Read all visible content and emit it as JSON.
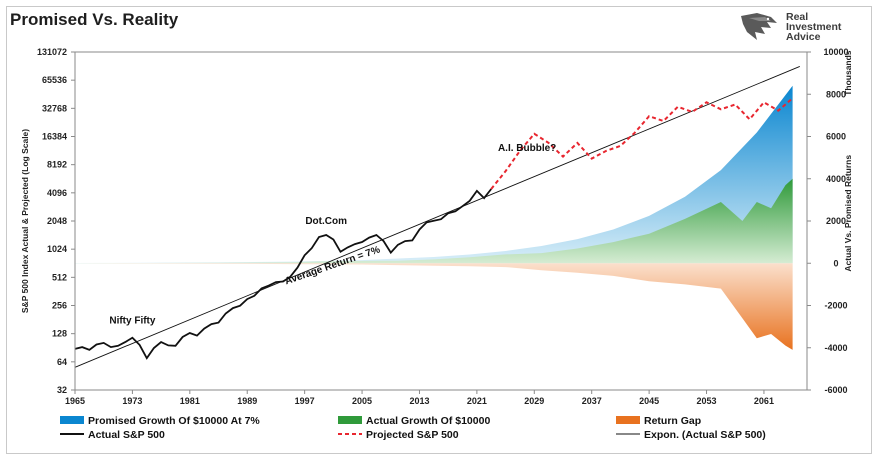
{
  "title": "Promised Vs. Reality",
  "brand": {
    "line1": "Real",
    "line2": "Investment",
    "line3": "Advice"
  },
  "colors": {
    "promised_top": "#0a86d0",
    "promised_bottom": "#d9eef8",
    "actual_top": "#2f9a3a",
    "actual_bottom": "#d5ecd3",
    "gap_top": "#fbe0cd",
    "gap_bottom": "#e8721f",
    "actual_line": "#111111",
    "projected_line": "#e8262f",
    "trend_line": "#111111"
  },
  "chart_data": {
    "type": "line",
    "xlabel": "",
    "ylabel_left": "S&P 500 Index Actual & Projected (Log Scale)",
    "ylabel_right": "Actual Vs. Promised Returns",
    "ylabel_right_unit": "Thousands",
    "left_scale": "log2",
    "ylim_left": [
      32,
      131072
    ],
    "ylim_right": [
      -6000,
      10000
    ],
    "xlim": [
      1965,
      2067
    ],
    "x_ticks": [
      "1965",
      "1973",
      "1981",
      "1989",
      "1997",
      "2005",
      "2013",
      "2021",
      "2029",
      "2037",
      "2045",
      "2053",
      "2061"
    ],
    "y_ticks_left": [
      "32",
      "64",
      "128",
      "256",
      "512",
      "1024",
      "2048",
      "4096",
      "8192",
      "16384",
      "32768",
      "65536",
      "131072"
    ],
    "y_ticks_right": [
      "-6000",
      "-4000",
      "-2000",
      "0",
      "2000",
      "4000",
      "6000",
      "8000",
      "10000"
    ],
    "annotations": [
      {
        "text": "Nifty Fifty",
        "x": 1973,
        "y": 165
      },
      {
        "text": "Dot.Com",
        "x": 2000,
        "y": 1900
      },
      {
        "text": "A.I. Bubble?",
        "x": 2028,
        "y": 11500
      },
      {
        "text": "Average Return = 7%",
        "x": 2001,
        "y": 640
      }
    ],
    "series": [
      {
        "name": "Actual S&P 500",
        "axis": "left",
        "x": [
          1965,
          1966,
          1967,
          1968,
          1969,
          1970,
          1971,
          1972,
          1973,
          1974,
          1975,
          1976,
          1977,
          1978,
          1979,
          1980,
          1981,
          1982,
          1983,
          1984,
          1985,
          1986,
          1987,
          1988,
          1989,
          1990,
          1991,
          1992,
          1993,
          1994,
          1995,
          1996,
          1997,
          1998,
          1999,
          2000,
          2001,
          2002,
          2003,
          2004,
          2005,
          2006,
          2007,
          2008,
          2009,
          2010,
          2011,
          2012,
          2013,
          2014,
          2015,
          2016,
          2017,
          2018,
          2019,
          2020,
          2021,
          2022,
          2023
        ],
        "values": [
          88,
          92,
          86,
          98,
          102,
          92,
          95,
          104,
          116,
          97,
          70,
          90,
          104,
          96,
          95,
          118,
          130,
          122,
          145,
          162,
          168,
          210,
          240,
          255,
          300,
          325,
          390,
          418,
          455,
          462,
          520,
          650,
          880,
          1050,
          1380,
          1450,
          1300,
          960,
          1070,
          1160,
          1220,
          1360,
          1450,
          1250,
          940,
          1140,
          1250,
          1270,
          1660,
          1980,
          2060,
          2140,
          2480,
          2600,
          2950,
          3370,
          4300,
          3600,
          4500
        ]
      },
      {
        "name": "Projected S&P 500",
        "axis": "left",
        "x": [
          2023,
          2025,
          2027,
          2029,
          2031,
          2033,
          2035,
          2037,
          2039,
          2041,
          2043,
          2045,
          2047,
          2049,
          2051,
          2053,
          2055,
          2057,
          2059,
          2061,
          2063,
          2065
        ],
        "values": [
          4500,
          7000,
          11500,
          17500,
          14000,
          10000,
          14000,
          9500,
          11500,
          13000,
          18000,
          27000,
          24000,
          34000,
          30000,
          38000,
          32000,
          36000,
          25000,
          38000,
          31000,
          42000
        ]
      },
      {
        "name": "Expon. (Actual S&P 500)",
        "axis": "left",
        "x": [
          1965,
          2066
        ],
        "values": [
          56,
          92000
        ]
      },
      {
        "name": "Promised Growth Of $10000 At 7%",
        "axis": "right",
        "x": [
          1965,
          1975,
          1985,
          1995,
          2005,
          2015,
          2020,
          2025,
          2030,
          2035,
          2040,
          2045,
          2050,
          2055,
          2060,
          2065
        ],
        "values": [
          10,
          20,
          39,
          76,
          150,
          295,
          414,
          580,
          815,
          1142,
          1600,
          2240,
          3150,
          4410,
          6190,
          8400
        ]
      },
      {
        "name": "Actual Growth Of $10000",
        "axis": "right",
        "x": [
          1965,
          1975,
          1985,
          1995,
          2000,
          2005,
          2010,
          2015,
          2020,
          2025,
          2030,
          2035,
          2040,
          2045,
          2050,
          2055,
          2058,
          2060,
          2062,
          2064,
          2065
        ],
        "values": [
          8,
          12,
          25,
          45,
          90,
          110,
          120,
          180,
          280,
          420,
          480,
          700,
          1000,
          1400,
          2100,
          2900,
          2000,
          2900,
          2600,
          3700,
          4000
        ]
      },
      {
        "name": "Return Gap",
        "axis": "right",
        "x": [
          1965,
          1975,
          1985,
          1995,
          2005,
          2015,
          2020,
          2025,
          2030,
          2035,
          2040,
          2045,
          2050,
          2055,
          2058,
          2060,
          2062,
          2064,
          2065
        ],
        "values": [
          0,
          -10,
          -20,
          -40,
          -60,
          -120,
          -140,
          -180,
          -330,
          -450,
          -600,
          -850,
          -1000,
          -1200,
          -2600,
          -3550,
          -3350,
          -3900,
          -4100
        ]
      }
    ],
    "legend": {
      "placement": "bottom",
      "entries": [
        "Promised Growth Of $10000 At 7%",
        "Actual Growth Of $10000",
        "Return Gap",
        "Actual S&P 500",
        "Projected S&P 500",
        "Expon. (Actual S&P 500)"
      ]
    },
    "grid": false
  }
}
